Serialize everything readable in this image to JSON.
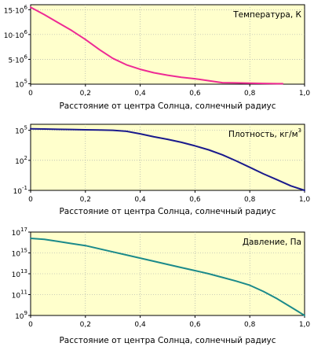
{
  "chart_data": [
    {
      "type": "line",
      "title": "Температура, К",
      "xlabel": "Расстояние от центра Солнца, солнечный радиус",
      "xlim": [
        0,
        1.0
      ],
      "xticks": [
        "0",
        "0,2",
        "0,4",
        "0,6",
        "0,8",
        "1,0"
      ],
      "ylim": [
        0,
        16000000
      ],
      "yticks": [
        {
          "value": 100000,
          "base": "10",
          "exp": "5"
        },
        {
          "value": 5000000,
          "base": "5·10",
          "exp": "6"
        },
        {
          "value": 10000000,
          "base": "10·10",
          "exp": "6"
        },
        {
          "value": 15000000,
          "base": "15·10",
          "exp": "6"
        }
      ],
      "grid": true,
      "color": "#ee2a94",
      "series": [
        {
          "x": [
            0,
            0.05,
            0.1,
            0.15,
            0.2,
            0.25,
            0.3,
            0.35,
            0.4,
            0.45,
            0.5,
            0.55,
            0.6,
            0.65,
            0.7,
            0.75,
            0.8,
            0.85,
            0.9,
            0.92
          ],
          "y": [
            15500000,
            14000000,
            12400000,
            10800000,
            9000000,
            7000000,
            5200000,
            3900000,
            3000000,
            2300000,
            1800000,
            1400000,
            1100000,
            700000,
            300000,
            250000,
            200000,
            150000,
            100000,
            100000
          ]
        }
      ]
    },
    {
      "type": "line",
      "title": "Плотность, кг/м",
      "title_sup": "3",
      "xlabel": "Расстояние от центра Солнца, солнечный радиус",
      "xlim": [
        0,
        1.0
      ],
      "xticks": [
        "0",
        "0,2",
        "0,4",
        "0,6",
        "0,8",
        "1,0"
      ],
      "yscale": "log",
      "ylim_exp": [
        -1,
        5.6
      ],
      "yticks": [
        {
          "value_exp": 5,
          "base": "10",
          "exp": "5"
        },
        {
          "value_exp": 2,
          "base": "10",
          "exp": "2"
        },
        {
          "value_exp": -1,
          "base": "10",
          "exp": "-1"
        }
      ],
      "grid": true,
      "color": "#1a1a8c",
      "series": [
        {
          "x": [
            0,
            0.05,
            0.1,
            0.15,
            0.2,
            0.25,
            0.3,
            0.35,
            0.4,
            0.45,
            0.5,
            0.55,
            0.6,
            0.65,
            0.7,
            0.75,
            0.8,
            0.85,
            0.9,
            0.95,
            1.0
          ],
          "y_exp": [
            5.15,
            5.13,
            5.1,
            5.08,
            5.05,
            5.03,
            5.0,
            4.9,
            4.65,
            4.35,
            4.1,
            3.8,
            3.45,
            3.05,
            2.55,
            1.95,
            1.3,
            0.65,
            0.05,
            -0.55,
            -1.0
          ]
        }
      ]
    },
    {
      "type": "line",
      "title": "Давление, Па",
      "xlabel": "Расстояние от центра Солнца, солнечный радиус",
      "xlim": [
        0,
        1.0
      ],
      "xticks": [
        "0",
        "0,2",
        "0,4",
        "0,6",
        "0,8",
        "1,0"
      ],
      "yscale": "log",
      "ylim_exp": [
        9,
        17
      ],
      "yticks": [
        {
          "value_exp": 17,
          "base": "10",
          "exp": "17"
        },
        {
          "value_exp": 15,
          "base": "10",
          "exp": "15"
        },
        {
          "value_exp": 13,
          "base": "10",
          "exp": "13"
        },
        {
          "value_exp": 11,
          "base": "10",
          "exp": "11"
        },
        {
          "value_exp": 9,
          "base": "10",
          "exp": "9"
        }
      ],
      "grid": true,
      "color": "#1b8a8a",
      "series": [
        {
          "x": [
            0,
            0.05,
            0.1,
            0.15,
            0.2,
            0.25,
            0.3,
            0.35,
            0.4,
            0.45,
            0.5,
            0.55,
            0.6,
            0.65,
            0.7,
            0.75,
            0.8,
            0.85,
            0.9,
            0.95,
            1.0
          ],
          "y_exp": [
            16.4,
            16.3,
            16.1,
            15.9,
            15.7,
            15.4,
            15.1,
            14.8,
            14.5,
            14.2,
            13.9,
            13.6,
            13.3,
            13.0,
            12.65,
            12.3,
            11.9,
            11.3,
            10.6,
            9.8,
            9.0
          ]
        }
      ]
    }
  ]
}
